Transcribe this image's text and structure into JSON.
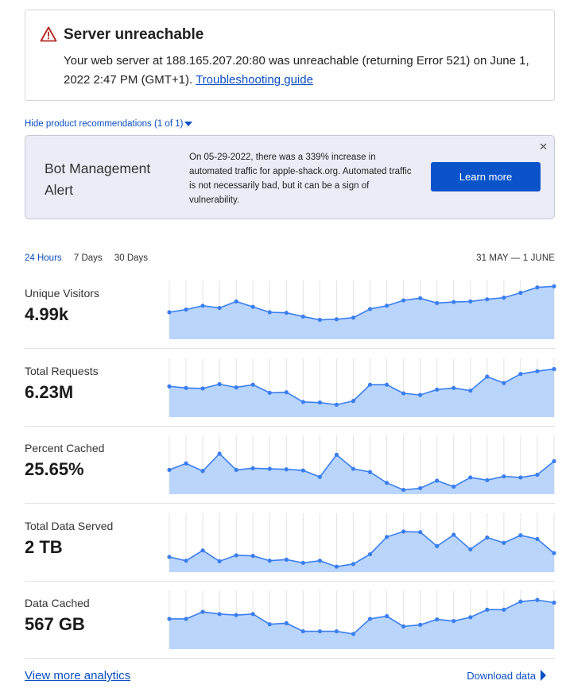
{
  "alert": {
    "title": "Server unreachable",
    "message": "Your web server at 188.165.207.20:80 was unreachable (returning Error 521) on June 1, 2022 2:47 PM (GMT+1).",
    "link_label": "Troubleshooting guide",
    "icon": "warning-triangle-icon",
    "icon_color": "#b3261e"
  },
  "recommendations": {
    "toggle_label": "Hide product recommendations (1 of 1)",
    "card_title": "Bot Management Alert",
    "card_text": "On 05-29-2022, there was a 339% increase in automated traffic for apple-shack.org. Automated traffic is not necessarily bad, but it can be a sign of vulnerability.",
    "close_icon": "close-icon",
    "button_label": "Learn more",
    "button_color": "#0b53c9"
  },
  "range": {
    "tabs": [
      "24 Hours",
      "7 Days",
      "30 Days"
    ],
    "active": "24 Hours",
    "date_label": "31 MAY — 1 JUNE"
  },
  "chart_data": [
    {
      "type": "area",
      "title": "Unique Visitors",
      "value_label": "4.99k",
      "values": [
        50,
        55,
        62,
        58,
        70,
        60,
        50,
        49,
        42,
        36,
        37,
        40,
        56,
        62,
        72,
        76,
        67,
        69,
        70,
        74,
        77,
        86,
        96,
        98
      ],
      "ylim": [
        0,
        100
      ]
    },
    {
      "type": "area",
      "title": "Total Requests",
      "value_label": "6.23M",
      "values": [
        57,
        54,
        53,
        61,
        55,
        60,
        45,
        46,
        28,
        27,
        23,
        30,
        60,
        60,
        44,
        41,
        51,
        54,
        49,
        75,
        63,
        80,
        85,
        89
      ],
      "ylim": [
        0,
        100
      ]
    },
    {
      "type": "area",
      "title": "Percent Cached",
      "value_label": "25.65%",
      "values": [
        45,
        57,
        43,
        75,
        45,
        48,
        47,
        46,
        44,
        32,
        73,
        47,
        41,
        21,
        8,
        11,
        25,
        14,
        31,
        26,
        33,
        31,
        36,
        61
      ],
      "ylim": [
        0,
        100
      ]
    },
    {
      "type": "area",
      "title": "Total Data Served",
      "value_label": "2 TB",
      "values": [
        28,
        21,
        40,
        20,
        31,
        30,
        21,
        23,
        17,
        21,
        10,
        15,
        33,
        65,
        75,
        74,
        48,
        69,
        42,
        64,
        54,
        68,
        61,
        35
      ],
      "ylim": [
        0,
        100
      ]
    },
    {
      "type": "area",
      "title": "Data Cached",
      "value_label": "567 GB",
      "values": [
        56,
        56,
        69,
        65,
        63,
        65,
        46,
        48,
        33,
        33,
        33,
        28,
        56,
        61,
        42,
        45,
        55,
        52,
        59,
        73,
        73,
        88,
        91,
        86
      ],
      "ylim": [
        0,
        100
      ]
    }
  ],
  "chart_style": {
    "line_color": "#3a7ef0",
    "fill_color": "#b9d5fb",
    "grid_color": "#e3e3e3"
  },
  "footer": {
    "analytics_link": "View more analytics",
    "download_label": "Download data"
  }
}
